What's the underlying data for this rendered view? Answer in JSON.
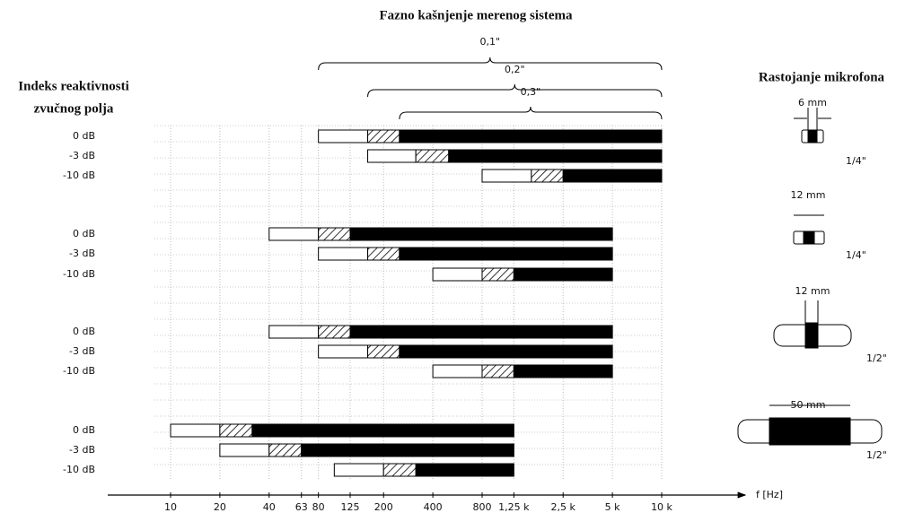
{
  "chart_data": {
    "type": "range-bar",
    "title": "Fazno kašnjenje merenog sistema",
    "y_title": [
      "Indeks reaktivnosti",
      "zvučnog polja"
    ],
    "right_title": "Rastojanje mikrofona",
    "x_label": "f [Hz]",
    "xlim": [
      10,
      10000
    ],
    "log_x": true,
    "grid": true,
    "xticks": [
      10,
      20,
      40,
      63,
      80,
      125,
      200,
      400,
      800,
      {
        "value": 1250,
        "label": "1,25 k"
      },
      {
        "value": 2500,
        "label": "2,5 k"
      },
      {
        "value": 5000,
        "label": "5 k"
      },
      {
        "value": 10000,
        "label": "10 k"
      }
    ],
    "annotations": [
      {
        "label": "0,1\"",
        "from": 80,
        "to": 10000
      },
      {
        "label": "0,2\"",
        "from": 160,
        "to": 10000
      },
      {
        "label": "0,3\"",
        "from": 250,
        "to": 10000
      }
    ],
    "groups": [
      {
        "spacing": "6 mm",
        "mic": "1/4\"",
        "rows": [
          {
            "label": "0 dB",
            "values": [
              80,
              160,
              250,
              10000
            ]
          },
          {
            "label": "-3 dB",
            "values": [
              160,
              315,
              500,
              10000
            ]
          },
          {
            "label": "-10 dB",
            "values": [
              800,
              1600,
              2500,
              10000
            ]
          }
        ]
      },
      {
        "spacing": "12 mm",
        "mic": "1/4\"",
        "rows": [
          {
            "label": "0 dB",
            "values": [
              40,
              80,
              125,
              5000
            ]
          },
          {
            "label": "-3 dB",
            "values": [
              80,
              160,
              250,
              5000
            ]
          },
          {
            "label": "-10 dB",
            "values": [
              400,
              800,
              1250,
              5000
            ]
          }
        ]
      },
      {
        "spacing": "12 mm",
        "mic": "1/2\"",
        "rows": [
          {
            "label": "0 dB",
            "values": [
              40,
              80,
              125,
              5000
            ]
          },
          {
            "label": "-3 dB",
            "values": [
              80,
              160,
              250,
              5000
            ]
          },
          {
            "label": "-10 dB",
            "values": [
              400,
              800,
              1250,
              5000
            ]
          }
        ]
      },
      {
        "spacing": "50 mm",
        "mic": "1/2\"",
        "rows": [
          {
            "label": "0 dB",
            "values": [
              10,
              20,
              31.5,
              1250
            ]
          },
          {
            "label": "-3 dB",
            "values": [
              20,
              40,
              63,
              1250
            ]
          },
          {
            "label": "-10 dB",
            "values": [
              100,
              200,
              315,
              1250
            ]
          }
        ]
      }
    ]
  }
}
